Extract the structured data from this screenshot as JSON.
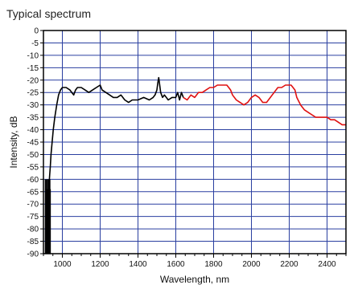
{
  "heading": "Typical spectrum",
  "colors": {
    "grid": "#2a3fa0",
    "frame": "#000000",
    "series_black": "#000000",
    "series_red": "#e01010",
    "background": "#ffffff"
  },
  "chart_data": {
    "type": "line",
    "title": "",
    "xlabel": "Wavelength, nm",
    "ylabel": "Intensity, dB",
    "xlim": [
      900,
      2500
    ],
    "ylim": [
      -90,
      0
    ],
    "grid": true,
    "x_ticks": [
      1000,
      1200,
      1400,
      1600,
      1800,
      2000,
      2200,
      2400
    ],
    "x_tick_labels": [
      "1000",
      "1200",
      "1400",
      "1600",
      "1800",
      "2000",
      "2200",
      "2400"
    ],
    "y_ticks": [
      0,
      -5,
      -10,
      -15,
      -20,
      -25,
      -30,
      -35,
      -40,
      -45,
      -50,
      -55,
      -60,
      -65,
      -70,
      -75,
      -80,
      -85,
      -90
    ],
    "y_tick_labels": [
      "0",
      "-5",
      "-10",
      "-15",
      "-20",
      "-25",
      "-30",
      "-35",
      "-40",
      "-45",
      "-50",
      "-55",
      "-60",
      "-65",
      "-70",
      "-75",
      "-80",
      "-85",
      "-90"
    ],
    "series": [
      {
        "color": "#000000",
        "x": [
          918,
          922,
          926,
          928,
          930,
          933,
          936,
          940,
          946,
          952,
          960,
          970,
          980,
          990,
          1000,
          1020,
          1040,
          1060,
          1070,
          1080,
          1100,
          1120,
          1140,
          1160,
          1180,
          1200,
          1210,
          1230,
          1250,
          1270,
          1290,
          1310,
          1330,
          1350,
          1370,
          1400,
          1430,
          1460,
          1480,
          1490,
          1500,
          1505,
          1510,
          1515,
          1520,
          1530,
          1540,
          1560,
          1580,
          1600,
          1610,
          1620,
          1630,
          1640
        ],
        "y": [
          -90,
          -80,
          -72,
          -66,
          -62,
          -58,
          -55,
          -50,
          -45,
          -40,
          -35,
          -30,
          -26,
          -24,
          -23,
          -23,
          -24,
          -26,
          -24,
          -23,
          -23,
          -24,
          -25,
          -24,
          -23,
          -22,
          -24,
          -25,
          -26,
          -27,
          -27,
          -26,
          -28,
          -29,
          -28,
          -28,
          -27,
          -28,
          -27,
          -26,
          -24,
          -21,
          -19,
          -22,
          -25,
          -27,
          -26,
          -28,
          -27,
          -27,
          -25,
          -28,
          -25,
          -27
        ]
      },
      {
        "color": "#e01010",
        "x": [
          1640,
          1660,
          1680,
          1700,
          1720,
          1740,
          1760,
          1780,
          1800,
          1820,
          1840,
          1860,
          1870,
          1880,
          1890,
          1900,
          1920,
          1940,
          1960,
          1980,
          2000,
          2020,
          2040,
          2060,
          2080,
          2100,
          2120,
          2140,
          2160,
          2180,
          2200,
          2210,
          2220,
          2230,
          2240,
          2260,
          2280,
          2300,
          2320,
          2340,
          2360,
          2380,
          2400,
          2420,
          2440,
          2460,
          2480,
          2500
        ],
        "y": [
          -27,
          -28,
          -26,
          -27,
          -25,
          -25,
          -24,
          -23,
          -23,
          -22,
          -22,
          -22,
          -22,
          -23,
          -24,
          -26,
          -28,
          -29,
          -30,
          -29,
          -27,
          -26,
          -27,
          -29,
          -29,
          -27,
          -25,
          -23,
          -23,
          -22,
          -22,
          -22,
          -23,
          -24,
          -27,
          -30,
          -32,
          -33,
          -34,
          -35,
          -35,
          -35,
          -35,
          -36,
          -36,
          -37,
          -38,
          -38
        ]
      }
    ]
  }
}
